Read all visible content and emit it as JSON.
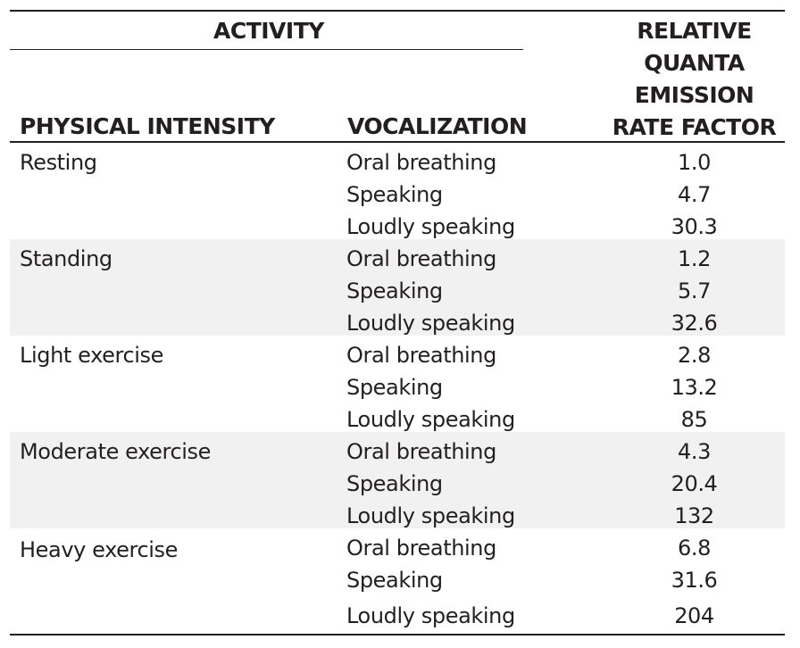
{
  "header": {
    "activity": "ACTIVITY",
    "physical_intensity": "PHYSICAL INTENSITY",
    "vocalization": "VOCALIZATION",
    "rate_factor": "RELATIVE\nQUANTA\nEMISSION\nRATE FACTOR"
  },
  "colors": {
    "text": "#231f20",
    "shaded_row": "#f1f1f2",
    "rule": "#231f20"
  },
  "groups": [
    {
      "intensity": "Resting",
      "rows": [
        {
          "vocalization": "Oral breathing",
          "value": "1.0"
        },
        {
          "vocalization": "Speaking",
          "value": "4.7"
        },
        {
          "vocalization": "Loudly speaking",
          "value": "30.3"
        }
      ]
    },
    {
      "intensity": "Standing",
      "rows": [
        {
          "vocalization": "Oral breathing",
          "value": "1.2"
        },
        {
          "vocalization": "Speaking",
          "value": "5.7"
        },
        {
          "vocalization": "Loudly speaking",
          "value": "32.6"
        }
      ]
    },
    {
      "intensity": "Light exercise",
      "rows": [
        {
          "vocalization": "Oral breathing",
          "value": "2.8"
        },
        {
          "vocalization": "Speaking",
          "value": "13.2"
        },
        {
          "vocalization": "Loudly speaking",
          "value": "85"
        }
      ]
    },
    {
      "intensity": "Moderate exercise",
      "rows": [
        {
          "vocalization": "Oral breathing",
          "value": "4.3"
        },
        {
          "vocalization": "Speaking",
          "value": "20.4"
        },
        {
          "vocalization": "Loudly speaking",
          "value": "132"
        }
      ]
    },
    {
      "intensity": "Heavy exercise",
      "rows": [
        {
          "vocalization": "Oral breathing",
          "value": "6.8"
        },
        {
          "vocalization": "Speaking",
          "value": "31.6"
        },
        {
          "vocalization": "Loudly speaking",
          "value": "204"
        }
      ]
    }
  ]
}
